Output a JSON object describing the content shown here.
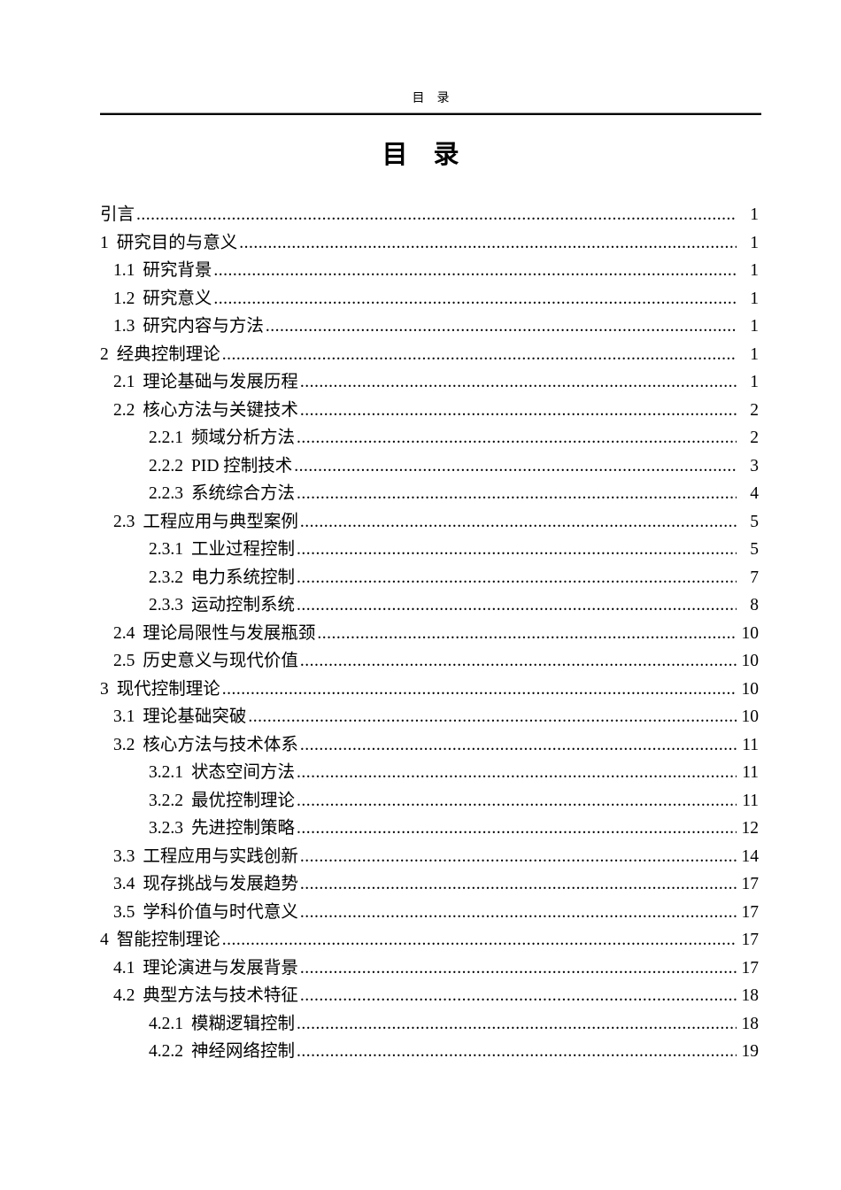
{
  "page": {
    "header_text": "目　录",
    "title": "目　录",
    "text_color": "#000000",
    "rule_colors": [
      "#9a9a9a",
      "#000000"
    ]
  },
  "toc": {
    "entries": [
      {
        "num": "",
        "text": "引言",
        "page": "1",
        "level": 1
      },
      {
        "num": "1",
        "text": "研究目的与意义",
        "page": "1",
        "level": 1
      },
      {
        "num": "1.1",
        "text": "研究背景",
        "page": "1",
        "level": 2
      },
      {
        "num": "1.2",
        "text": "研究意义",
        "page": "1",
        "level": 2
      },
      {
        "num": "1.3",
        "text": "研究内容与方法",
        "page": "1",
        "level": 2
      },
      {
        "num": "2",
        "text": "经典控制理论",
        "page": "1",
        "level": 1
      },
      {
        "num": "2.1",
        "text": "理论基础与发展历程",
        "page": "1",
        "level": 2
      },
      {
        "num": "2.2",
        "text": "核心方法与关键技术",
        "page": "2",
        "level": 2
      },
      {
        "num": "2.2.1",
        "text": "频域分析方法",
        "page": "2",
        "level": 3
      },
      {
        "num": "2.2.2",
        "text": "PID 控制技术",
        "page": "3",
        "level": 3
      },
      {
        "num": "2.2.3",
        "text": "系统综合方法",
        "page": "4",
        "level": 3
      },
      {
        "num": "2.3",
        "text": "工程应用与典型案例",
        "page": "5",
        "level": 2
      },
      {
        "num": "2.3.1",
        "text": "工业过程控制",
        "page": "5",
        "level": 3
      },
      {
        "num": "2.3.2",
        "text": "电力系统控制",
        "page": "7",
        "level": 3
      },
      {
        "num": "2.3.3",
        "text": "运动控制系统",
        "page": "8",
        "level": 3
      },
      {
        "num": "2.4",
        "text": "理论局限性与发展瓶颈",
        "page": "10",
        "level": 2
      },
      {
        "num": "2.5",
        "text": "历史意义与现代价值",
        "page": "10",
        "level": 2
      },
      {
        "num": "3",
        "text": "现代控制理论",
        "page": "10",
        "level": 1
      },
      {
        "num": "3.1",
        "text": "理论基础突破",
        "page": "10",
        "level": 2
      },
      {
        "num": "3.2",
        "text": "核心方法与技术体系",
        "page": "11",
        "level": 2
      },
      {
        "num": "3.2.1",
        "text": "状态空间方法",
        "page": "11",
        "level": 3
      },
      {
        "num": "3.2.2",
        "text": "最优控制理论",
        "page": "11",
        "level": 3
      },
      {
        "num": "3.2.3",
        "text": "先进控制策略",
        "page": "12",
        "level": 3
      },
      {
        "num": "3.3",
        "text": "工程应用与实践创新",
        "page": "14",
        "level": 2
      },
      {
        "num": "3.4",
        "text": "现存挑战与发展趋势",
        "page": "17",
        "level": 2
      },
      {
        "num": "3.5",
        "text": "学科价值与时代意义",
        "page": "17",
        "level": 2
      },
      {
        "num": "4",
        "text": "智能控制理论",
        "page": "17",
        "level": 1
      },
      {
        "num": "4.1",
        "text": "理论演进与发展背景",
        "page": "17",
        "level": 2
      },
      {
        "num": "4.2",
        "text": "典型方法与技术特征",
        "page": "18",
        "level": 2
      },
      {
        "num": "4.2.1",
        "text": "模糊逻辑控制",
        "page": "18",
        "level": 3
      },
      {
        "num": "4.2.2",
        "text": "神经网络控制",
        "page": "19",
        "level": 3
      }
    ]
  }
}
